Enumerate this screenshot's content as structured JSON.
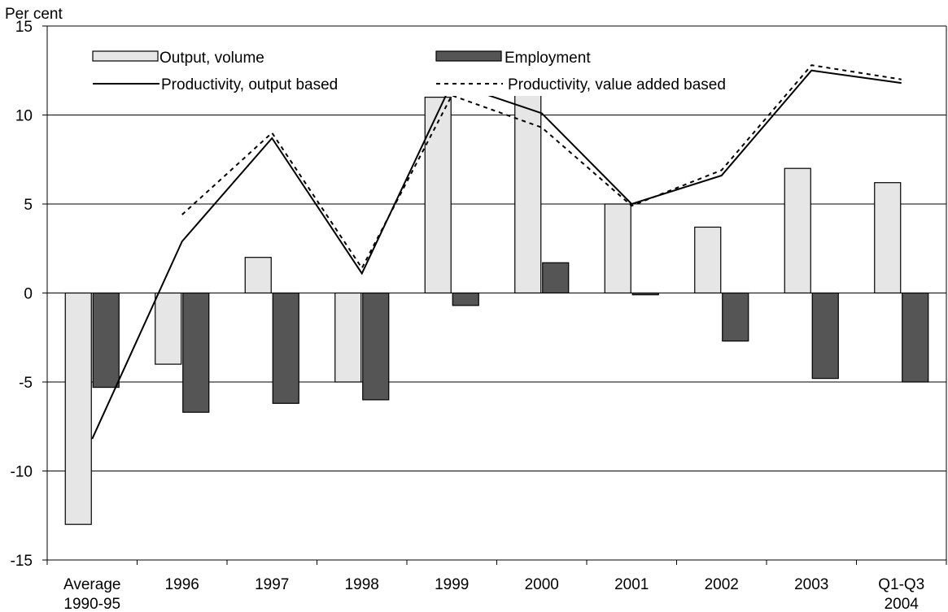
{
  "chart_data": {
    "type": "bar",
    "ylabel": "Per cent",
    "ylim": [
      -15,
      15
    ],
    "yticks": [
      15,
      10,
      5,
      0,
      -5,
      -10,
      -15
    ],
    "grid": true,
    "legend_position": "top",
    "categories": [
      [
        "Average",
        "1990-95"
      ],
      [
        "1996"
      ],
      [
        "1997"
      ],
      [
        "1998"
      ],
      [
        "1999"
      ],
      [
        "2000"
      ],
      [
        "2001"
      ],
      [
        "2002"
      ],
      [
        "2003"
      ],
      [
        "Q1-Q3",
        "2004"
      ]
    ],
    "series": [
      {
        "name": "Output, volume",
        "kind": "bar",
        "color": "#e6e6e6",
        "values": [
          -13.0,
          -4.0,
          2.0,
          -5.0,
          11.0,
          12.0,
          5.0,
          3.7,
          7.0,
          6.2
        ]
      },
      {
        "name": "Employment",
        "kind": "bar",
        "color": "#555555",
        "values": [
          -5.3,
          -6.7,
          -6.2,
          -6.0,
          -0.7,
          1.7,
          -0.1,
          -2.7,
          -4.8,
          -5.0
        ]
      },
      {
        "name": "Productivity, output based",
        "kind": "line",
        "dash": "solid",
        "color": "#000000",
        "values": [
          -8.2,
          2.9,
          8.7,
          1.1,
          11.8,
          10.1,
          5.0,
          6.6,
          12.5,
          11.8
        ]
      },
      {
        "name": "Productivity, value added based",
        "kind": "line",
        "dash": "dotted",
        "color": "#000000",
        "values": [
          null,
          4.4,
          9.0,
          1.4,
          11.1,
          9.3,
          4.9,
          6.9,
          12.8,
          12.0
        ]
      }
    ]
  }
}
